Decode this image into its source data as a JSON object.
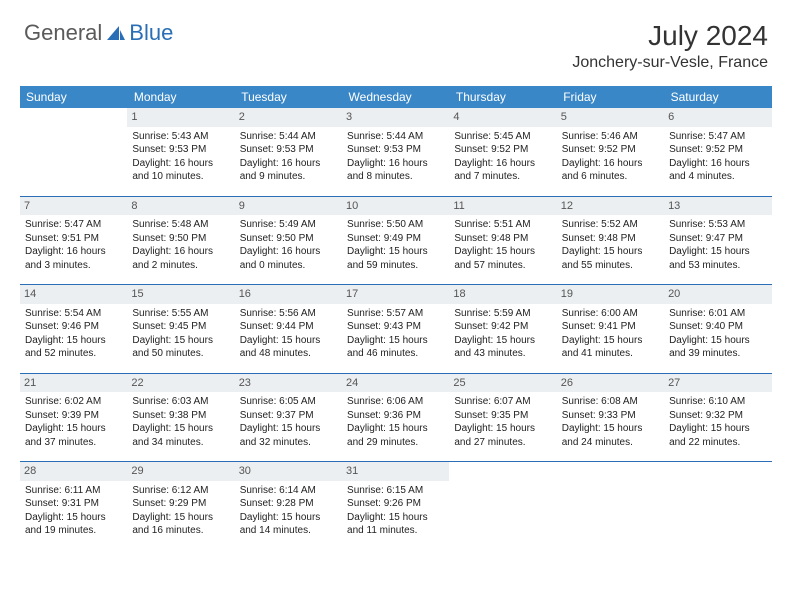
{
  "brand": {
    "general": "General",
    "blue": "Blue"
  },
  "title": "July 2024",
  "location": "Jonchery-sur-Vesle, France",
  "colors": {
    "header_bg": "#3a87c8",
    "header_text": "#ffffff",
    "daynum_bg": "#eceff1",
    "sep_line": "#2a6fb5",
    "logo_gray": "#5a5a5a",
    "logo_blue": "#2a6fb5"
  },
  "weekdays": [
    "Sunday",
    "Monday",
    "Tuesday",
    "Wednesday",
    "Thursday",
    "Friday",
    "Saturday"
  ],
  "weeks": [
    [
      {
        "n": "",
        "sr": "",
        "ss": "",
        "dl": ""
      },
      {
        "n": "1",
        "sr": "Sunrise: 5:43 AM",
        "ss": "Sunset: 9:53 PM",
        "dl": "Daylight: 16 hours and 10 minutes."
      },
      {
        "n": "2",
        "sr": "Sunrise: 5:44 AM",
        "ss": "Sunset: 9:53 PM",
        "dl": "Daylight: 16 hours and 9 minutes."
      },
      {
        "n": "3",
        "sr": "Sunrise: 5:44 AM",
        "ss": "Sunset: 9:53 PM",
        "dl": "Daylight: 16 hours and 8 minutes."
      },
      {
        "n": "4",
        "sr": "Sunrise: 5:45 AM",
        "ss": "Sunset: 9:52 PM",
        "dl": "Daylight: 16 hours and 7 minutes."
      },
      {
        "n": "5",
        "sr": "Sunrise: 5:46 AM",
        "ss": "Sunset: 9:52 PM",
        "dl": "Daylight: 16 hours and 6 minutes."
      },
      {
        "n": "6",
        "sr": "Sunrise: 5:47 AM",
        "ss": "Sunset: 9:52 PM",
        "dl": "Daylight: 16 hours and 4 minutes."
      }
    ],
    [
      {
        "n": "7",
        "sr": "Sunrise: 5:47 AM",
        "ss": "Sunset: 9:51 PM",
        "dl": "Daylight: 16 hours and 3 minutes."
      },
      {
        "n": "8",
        "sr": "Sunrise: 5:48 AM",
        "ss": "Sunset: 9:50 PM",
        "dl": "Daylight: 16 hours and 2 minutes."
      },
      {
        "n": "9",
        "sr": "Sunrise: 5:49 AM",
        "ss": "Sunset: 9:50 PM",
        "dl": "Daylight: 16 hours and 0 minutes."
      },
      {
        "n": "10",
        "sr": "Sunrise: 5:50 AM",
        "ss": "Sunset: 9:49 PM",
        "dl": "Daylight: 15 hours and 59 minutes."
      },
      {
        "n": "11",
        "sr": "Sunrise: 5:51 AM",
        "ss": "Sunset: 9:48 PM",
        "dl": "Daylight: 15 hours and 57 minutes."
      },
      {
        "n": "12",
        "sr": "Sunrise: 5:52 AM",
        "ss": "Sunset: 9:48 PM",
        "dl": "Daylight: 15 hours and 55 minutes."
      },
      {
        "n": "13",
        "sr": "Sunrise: 5:53 AM",
        "ss": "Sunset: 9:47 PM",
        "dl": "Daylight: 15 hours and 53 minutes."
      }
    ],
    [
      {
        "n": "14",
        "sr": "Sunrise: 5:54 AM",
        "ss": "Sunset: 9:46 PM",
        "dl": "Daylight: 15 hours and 52 minutes."
      },
      {
        "n": "15",
        "sr": "Sunrise: 5:55 AM",
        "ss": "Sunset: 9:45 PM",
        "dl": "Daylight: 15 hours and 50 minutes."
      },
      {
        "n": "16",
        "sr": "Sunrise: 5:56 AM",
        "ss": "Sunset: 9:44 PM",
        "dl": "Daylight: 15 hours and 48 minutes."
      },
      {
        "n": "17",
        "sr": "Sunrise: 5:57 AM",
        "ss": "Sunset: 9:43 PM",
        "dl": "Daylight: 15 hours and 46 minutes."
      },
      {
        "n": "18",
        "sr": "Sunrise: 5:59 AM",
        "ss": "Sunset: 9:42 PM",
        "dl": "Daylight: 15 hours and 43 minutes."
      },
      {
        "n": "19",
        "sr": "Sunrise: 6:00 AM",
        "ss": "Sunset: 9:41 PM",
        "dl": "Daylight: 15 hours and 41 minutes."
      },
      {
        "n": "20",
        "sr": "Sunrise: 6:01 AM",
        "ss": "Sunset: 9:40 PM",
        "dl": "Daylight: 15 hours and 39 minutes."
      }
    ],
    [
      {
        "n": "21",
        "sr": "Sunrise: 6:02 AM",
        "ss": "Sunset: 9:39 PM",
        "dl": "Daylight: 15 hours and 37 minutes."
      },
      {
        "n": "22",
        "sr": "Sunrise: 6:03 AM",
        "ss": "Sunset: 9:38 PM",
        "dl": "Daylight: 15 hours and 34 minutes."
      },
      {
        "n": "23",
        "sr": "Sunrise: 6:05 AM",
        "ss": "Sunset: 9:37 PM",
        "dl": "Daylight: 15 hours and 32 minutes."
      },
      {
        "n": "24",
        "sr": "Sunrise: 6:06 AM",
        "ss": "Sunset: 9:36 PM",
        "dl": "Daylight: 15 hours and 29 minutes."
      },
      {
        "n": "25",
        "sr": "Sunrise: 6:07 AM",
        "ss": "Sunset: 9:35 PM",
        "dl": "Daylight: 15 hours and 27 minutes."
      },
      {
        "n": "26",
        "sr": "Sunrise: 6:08 AM",
        "ss": "Sunset: 9:33 PM",
        "dl": "Daylight: 15 hours and 24 minutes."
      },
      {
        "n": "27",
        "sr": "Sunrise: 6:10 AM",
        "ss": "Sunset: 9:32 PM",
        "dl": "Daylight: 15 hours and 22 minutes."
      }
    ],
    [
      {
        "n": "28",
        "sr": "Sunrise: 6:11 AM",
        "ss": "Sunset: 9:31 PM",
        "dl": "Daylight: 15 hours and 19 minutes."
      },
      {
        "n": "29",
        "sr": "Sunrise: 6:12 AM",
        "ss": "Sunset: 9:29 PM",
        "dl": "Daylight: 15 hours and 16 minutes."
      },
      {
        "n": "30",
        "sr": "Sunrise: 6:14 AM",
        "ss": "Sunset: 9:28 PM",
        "dl": "Daylight: 15 hours and 14 minutes."
      },
      {
        "n": "31",
        "sr": "Sunrise: 6:15 AM",
        "ss": "Sunset: 9:26 PM",
        "dl": "Daylight: 15 hours and 11 minutes."
      },
      {
        "n": "",
        "sr": "",
        "ss": "",
        "dl": ""
      },
      {
        "n": "",
        "sr": "",
        "ss": "",
        "dl": ""
      },
      {
        "n": "",
        "sr": "",
        "ss": "",
        "dl": ""
      }
    ]
  ]
}
